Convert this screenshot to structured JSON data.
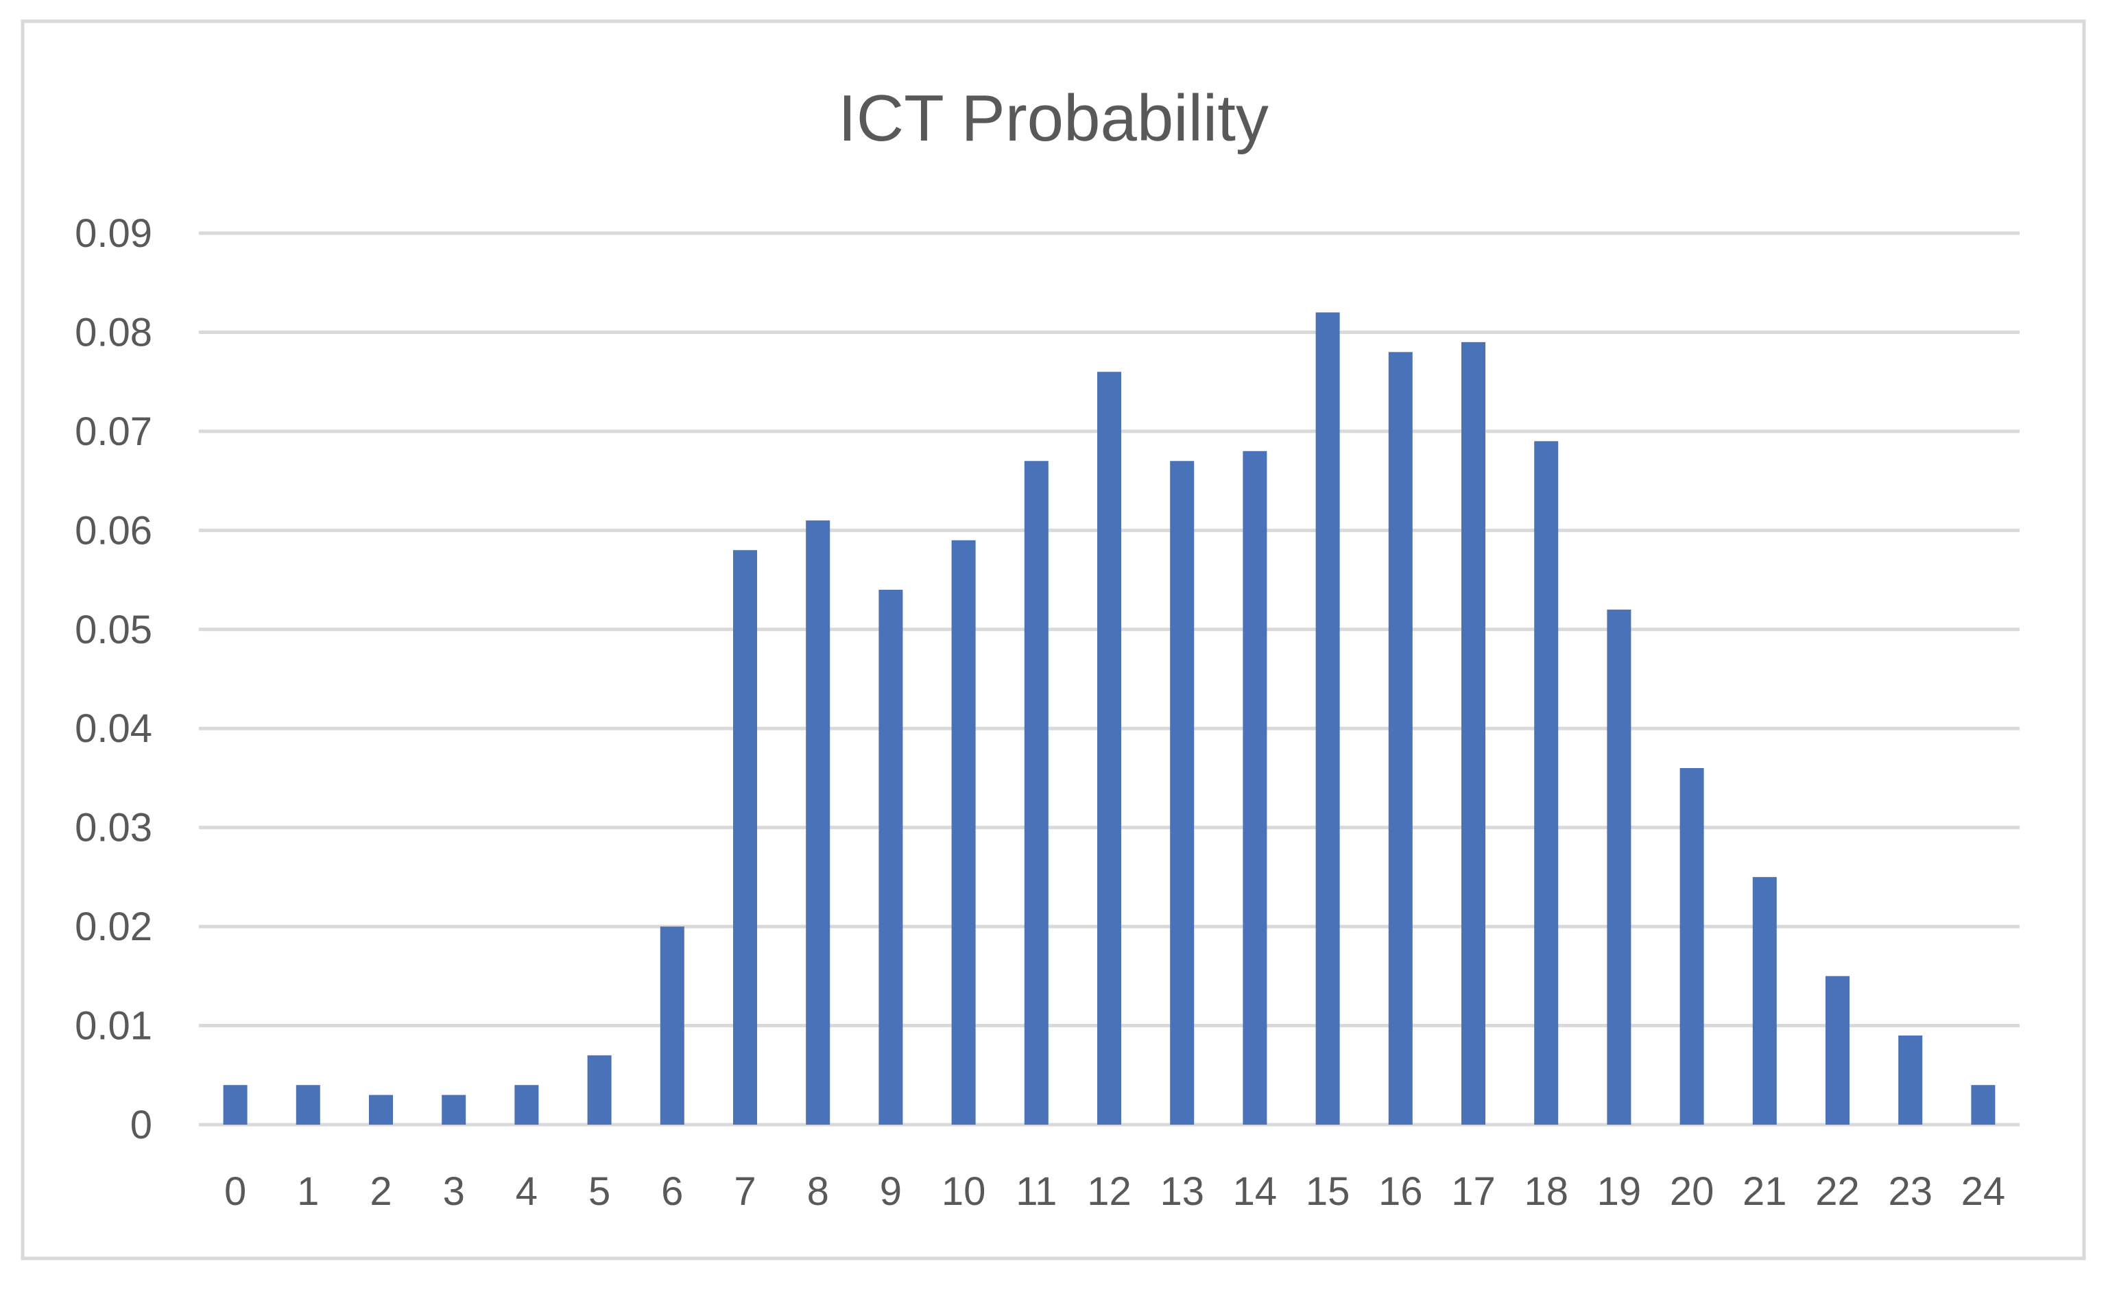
{
  "chart_data": {
    "type": "bar",
    "title": "ICT Probability",
    "xlabel": "",
    "ylabel": "",
    "categories": [
      "0",
      "1",
      "2",
      "3",
      "4",
      "5",
      "6",
      "7",
      "8",
      "9",
      "10",
      "11",
      "12",
      "13",
      "14",
      "15",
      "16",
      "17",
      "18",
      "19",
      "20",
      "21",
      "22",
      "23",
      "24"
    ],
    "values": [
      0.004,
      0.004,
      0.003,
      0.003,
      0.004,
      0.007,
      0.02,
      0.058,
      0.061,
      0.054,
      0.059,
      0.067,
      0.076,
      0.067,
      0.068,
      0.082,
      0.078,
      0.079,
      0.069,
      0.052,
      0.036,
      0.025,
      0.015,
      0.009,
      0.004
    ],
    "ylim": [
      0,
      0.09
    ],
    "yticks": [
      "0",
      "0.01",
      "0.02",
      "0.03",
      "0.04",
      "0.05",
      "0.06",
      "0.07",
      "0.08",
      "0.09"
    ],
    "grid": true,
    "legend": "none",
    "colors": {
      "bar": "#4A72B8",
      "grid": "#D9D9D9",
      "text": "#595959",
      "border": "#D9D9D9",
      "background": "#FFFFFF"
    }
  }
}
